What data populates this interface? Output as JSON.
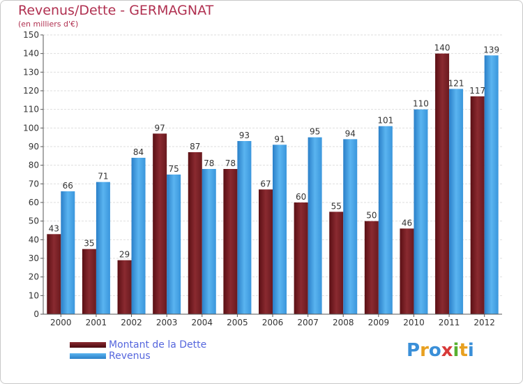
{
  "header": {
    "title": "Revenus/Dette - GERMAGNAT",
    "subtitle": "(en milliers d'€)"
  },
  "chart_data": {
    "type": "bar",
    "categories": [
      "2000",
      "2001",
      "2002",
      "2003",
      "2004",
      "2005",
      "2006",
      "2007",
      "2008",
      "2009",
      "2010",
      "2011",
      "2012"
    ],
    "series": [
      {
        "name": "Montant de la Dette",
        "color": "#7a1f24",
        "values": [
          43,
          35,
          29,
          97,
          87,
          78,
          67,
          60,
          55,
          50,
          46,
          140,
          117
        ]
      },
      {
        "name": "Revenus",
        "color": "#3a9de0",
        "values": [
          66,
          71,
          84,
          75,
          78,
          93,
          91,
          95,
          94,
          101,
          110,
          121,
          139
        ]
      }
    ],
    "ylim": [
      0,
      150
    ],
    "yticks": [
      0,
      10,
      20,
      30,
      40,
      50,
      60,
      70,
      80,
      90,
      100,
      110,
      120,
      130,
      140,
      150
    ],
    "grid": true,
    "legend": "bottom-left"
  },
  "logo": {
    "letters": [
      {
        "ch": "P",
        "color": "#3a8fd8"
      },
      {
        "ch": "r",
        "color": "#e8a020"
      },
      {
        "ch": "o",
        "color": "#3a8fd8"
      },
      {
        "ch": "x",
        "color": "#d83a3a"
      },
      {
        "ch": "i",
        "color": "#58b030"
      },
      {
        "ch": "t",
        "color": "#e8a020"
      },
      {
        "ch": "i",
        "color": "#3a8fd8"
      }
    ]
  }
}
